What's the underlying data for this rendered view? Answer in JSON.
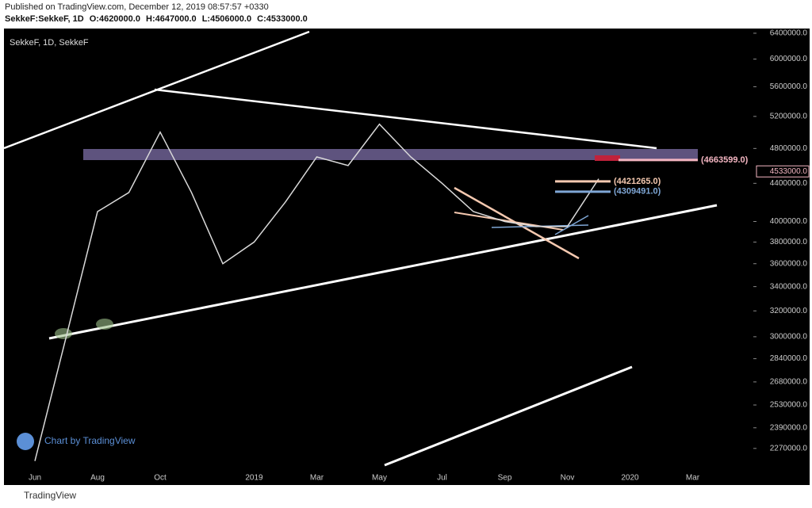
{
  "chart_data": {
    "type": "line",
    "publisher": "Published on TradingView.com, December 12, 2019 08:57:57 +0330",
    "symbol_line": "SekkeF:SekkeF, 1D",
    "ohlc": [
      "O:4620000.0",
      "H:4647000.0",
      "L:4506000.0",
      "C:4533000.0"
    ],
    "title": "SekkeF, 1D, SekkeF",
    "watermark": "Chart by TradingView",
    "footer": "TradingView",
    "categories": [
      "Jun",
      null,
      "Aug",
      null,
      "Oct",
      null,
      null,
      "2019",
      null,
      "Mar",
      null,
      "May",
      null,
      "Jul",
      null,
      "Sep",
      null,
      "Nov",
      null,
      "2020",
      null,
      "Mar"
    ],
    "series": [
      {
        "name": "SekkeF",
        "color": "#d9d9d9",
        "values": [
          2200000,
          3000000,
          4100000,
          4300000,
          5000000,
          4300000,
          3600000,
          3800000,
          4200000,
          4700000,
          4600000,
          5100000,
          4700000,
          4400000,
          4100000,
          4000000,
          3950000,
          3950000,
          4450000,
          null,
          null,
          null
        ]
      }
    ],
    "log_scale": true,
    "ylim": [
      2130000,
      6450000
    ],
    "yticks": [
      {
        "value": 6400000,
        "label": "6400000.0"
      },
      {
        "value": 6000000,
        "label": "6000000.0"
      },
      {
        "value": 5600000,
        "label": "5600000.0"
      },
      {
        "value": 5200000,
        "label": "5200000.0"
      },
      {
        "value": 4800000,
        "label": "4800000.0"
      },
      {
        "value": 4400000,
        "label": "4400000.0"
      },
      {
        "value": 4000000,
        "label": "4000000.0"
      },
      {
        "value": 3800000,
        "label": "3800000.0"
      },
      {
        "value": 3600000,
        "label": "3600000.0"
      },
      {
        "value": 3400000,
        "label": "3400000.0"
      },
      {
        "value": 3200000,
        "label": "3200000.0"
      },
      {
        "value": 3000000,
        "label": "3000000.0"
      },
      {
        "value": 2840000,
        "label": "2840000.0"
      },
      {
        "value": 2680000,
        "label": "2680000.0"
      },
      {
        "value": 2530000,
        "label": "2530000.0"
      },
      {
        "value": 2390000,
        "label": "2390000.0"
      },
      {
        "value": 2270000,
        "label": "2270000.0"
      }
    ],
    "levels": [
      {
        "value": 4663599,
        "label": "(4663599.0)",
        "color": "#f4b6c2"
      },
      {
        "value": 4421265,
        "label": "(4421265.0)",
        "color": "#f5c9b0"
      },
      {
        "value": 4309491,
        "label": "(4309491.0)",
        "color": "#7fa7d6"
      }
    ],
    "last_price": {
      "value": 4533000,
      "label": "4533000.0",
      "color": "#f4b6c2"
    },
    "grid": false
  }
}
